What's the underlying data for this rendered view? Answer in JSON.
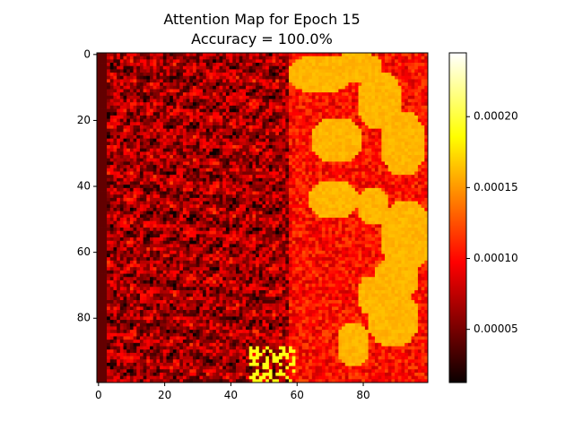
{
  "chart_data": {
    "type": "heatmap",
    "title_line1": "Attention Map for Epoch 15",
    "title_line2": "Accuracy = 100.0%",
    "xlabel": "",
    "ylabel": "",
    "grid": false,
    "colormap": "hot",
    "shape": [
      100,
      100
    ],
    "x_range": [
      -0.5,
      99.5
    ],
    "y_range": [
      -0.5,
      99.5
    ],
    "y_inverted": true,
    "x_ticks": [
      "0",
      "20",
      "40",
      "60",
      "80"
    ],
    "x_tick_values": [
      0,
      20,
      40,
      60,
      80
    ],
    "y_ticks": [
      "0",
      "20",
      "40",
      "60",
      "80"
    ],
    "y_tick_values": [
      0,
      20,
      40,
      60,
      80
    ],
    "colorbar": {
      "min": 1.25e-05,
      "max": 0.000245,
      "ticks": [
        "0.00005",
        "0.00010",
        "0.00015",
        "0.00020"
      ],
      "tick_values": [
        5e-05,
        0.0001,
        0.00015,
        0.0002
      ]
    },
    "description_regions": {
      "left_region_level": 6e-05,
      "right_blob_level": 0.00016,
      "boundary_column": 57
    }
  }
}
